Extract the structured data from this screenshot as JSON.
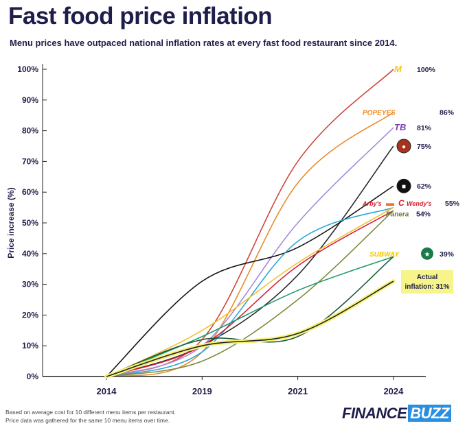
{
  "title": "Fast food price inflation",
  "subtitle": "Menu prices have outpaced national inflation rates at every fast food restaurant since 2014.",
  "notes": [
    "Based on average cost for 10 different menu items per restaurant.",
    "Price data was gathered for the same 10 menu items over time."
  ],
  "brand": {
    "part1": "FINANCE",
    "part2": "BUZZ"
  },
  "chart_data": {
    "type": "line",
    "title": "Fast food price inflation",
    "ylabel": "Price increase (%)",
    "xlabel": "",
    "categories": [
      "2014",
      "2019",
      "2021",
      "2024"
    ],
    "yticks": [
      "0%",
      "10%",
      "20%",
      "30%",
      "40%",
      "50%",
      "60%",
      "70%",
      "80%",
      "90%",
      "100%"
    ],
    "ylim": [
      0,
      100
    ],
    "grid": false,
    "series": [
      {
        "color": "#d0473a",
        "values": [
          0,
          12,
          70,
          100
        ]
      },
      {
        "color": "#ea8a2a",
        "values": [
          0,
          8,
          63,
          86
        ]
      },
      {
        "color": "#a58bd6",
        "values": [
          0,
          10,
          50,
          81
        ]
      },
      {
        "color": "#2a2a2a",
        "values": [
          0,
          10,
          33,
          75
        ]
      },
      {
        "color": "#111111",
        "values": [
          0,
          31,
          42,
          62
        ]
      },
      {
        "color": "#2ba6d6",
        "values": [
          0,
          8,
          44,
          55
        ]
      },
      {
        "color": "#f0c030",
        "values": [
          0,
          15,
          37,
          55
        ]
      },
      {
        "color": "#d81e3a",
        "values": [
          0,
          10,
          36,
          54
        ]
      },
      {
        "color": "#7c8a3a",
        "values": [
          0,
          5,
          25,
          54
        ]
      },
      {
        "color": "#1f9a6a",
        "values": [
          0,
          13,
          28,
          39
        ]
      },
      {
        "color": "#1f5a3a",
        "values": [
          0,
          12,
          13,
          39
        ]
      },
      {
        "color": "#222222",
        "highlight": "#f5f27a",
        "values": [
          0,
          10,
          14,
          31
        ]
      }
    ],
    "end_labels": [
      {
        "logos": [
          "M"
        ],
        "logo_colors": [
          "#f5c518"
        ],
        "label": "100%",
        "value": 100
      },
      {
        "logos": [
          "POPEYES"
        ],
        "logo_colors": [
          "#f08a1c"
        ],
        "label": "86%",
        "value": 86
      },
      {
        "logos": [
          "TB"
        ],
        "logo_colors": [
          "#7b3fb0"
        ],
        "label": "81%",
        "value": 81
      },
      {
        "logos": [
          "●"
        ],
        "logo_colors": [
          "#a8321e"
        ],
        "label": "75%",
        "value": 75
      },
      {
        "logos": [
          "■"
        ],
        "logo_colors": [
          "#111111"
        ],
        "label": "62%",
        "value": 62
      },
      {
        "logos": [
          "Arby's",
          "▬",
          "C",
          "Wendy's"
        ],
        "logo_colors": [
          "#d2202e",
          "#e8702a",
          "#d2202e",
          "#d2202e"
        ],
        "label": "55%",
        "value": 56.5
      },
      {
        "logos": [
          "Panera"
        ],
        "logo_colors": [
          "#6b7a3a"
        ],
        "label": "54%",
        "value": 53
      },
      {
        "logos": [
          "SUBWAY",
          "★"
        ],
        "logo_colors": [
          "#f2c500",
          "#1a7a4a"
        ],
        "label": "39%",
        "value": 40
      }
    ],
    "annotation": {
      "text": "Actual inflation: 31%",
      "line1": "Actual",
      "line2": "inflation: 31%",
      "color": "#f7f48a"
    }
  }
}
